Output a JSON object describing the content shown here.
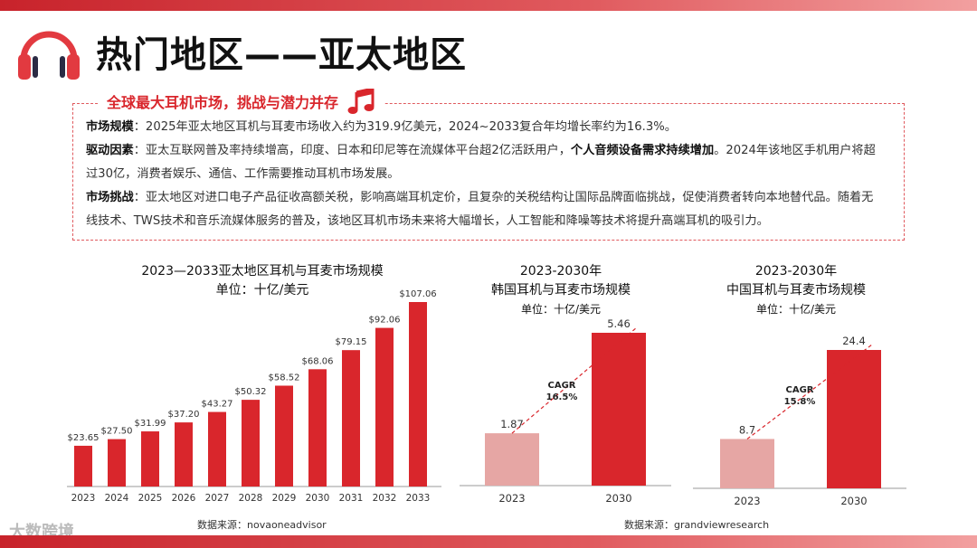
{
  "header": {
    "title": "热门地区——亚太地区"
  },
  "info": {
    "heading": "全球最大耳机市场，挑战与潜力并存",
    "line1_label": "市场规模",
    "line1_text": "：2025年亚太地区耳机与耳麦市场收入约为319.9亿美元，2024~2033复合年均增长率约为16.3%。",
    "line2_label": "驱动因素",
    "line2_text_a": "：亚太互联网普及率持续增高，印度、日本和印尼等在流媒体平台超2亿活跃用户，",
    "line2_strong": "个人音频设备需求持续增加",
    "line2_text_b": "。2024年该地区手机用户将超",
    "line3_text": "过30亿，消费者娱乐、通信、工作需要推动耳机市场发展。",
    "line4_label": "市场挑战",
    "line4_text": "：亚太地区对进口电子产品征收高额关税，影响高端耳机定价，且复杂的关税结构让国际品牌面临挑战，促使消费者转向本地替代品。随着无",
    "line5_text": "线技术、TWS技术和音乐流媒体服务的普及，该地区耳机市场未来将大幅增长，人工智能和降噪等技术将提升高端耳机的吸引力。"
  },
  "chart_data": [
    {
      "type": "bar",
      "title": "2023—2033亚太地区耳机与耳麦市场规模",
      "subtitle": "单位：十亿/美元",
      "categories": [
        "2023",
        "2024",
        "2025",
        "2026",
        "2027",
        "2028",
        "2029",
        "2030",
        "2031",
        "2032",
        "2033"
      ],
      "values": [
        23.65,
        27.5,
        31.99,
        37.2,
        43.27,
        50.32,
        58.52,
        68.06,
        79.15,
        92.06,
        107.06
      ],
      "value_labels": [
        "$23.65",
        "$27.50",
        "$31.99",
        "$37.20",
        "$43.27",
        "$50.32",
        "$58.52",
        "$68.06",
        "$79.15",
        "$92.06",
        "$107.06"
      ],
      "ylim": [
        0,
        107.06
      ],
      "color": "#d9262c"
    },
    {
      "type": "bar",
      "title": "2023-2030年",
      "subtitle": "韩国耳机与耳麦市场规模",
      "unit": "单位：十亿/美元",
      "categories": [
        "2023",
        "2030"
      ],
      "values": [
        1.87,
        5.46
      ],
      "value_labels": [
        "1.87",
        "5.46"
      ],
      "ylim": [
        0,
        5.46
      ],
      "annotation": [
        "CAGR",
        "16.5%"
      ],
      "colors": [
        "#e6a6a4",
        "#d9262c"
      ]
    },
    {
      "type": "bar",
      "title": "2023-2030年",
      "subtitle": "中国耳机与耳麦市场规模",
      "unit": "单位：十亿/美元",
      "categories": [
        "2023",
        "2030"
      ],
      "values": [
        8.7,
        24.4
      ],
      "value_labels": [
        "8.7",
        "24.4"
      ],
      "ylim": [
        0,
        24.4
      ],
      "annotation": [
        "CAGR",
        "15.8%"
      ],
      "colors": [
        "#e6a6a4",
        "#d9262c"
      ]
    }
  ],
  "sources": {
    "left": "数据来源：novaoneadvisor",
    "right": "数据来源：grandviewresearch"
  },
  "watermark": "大数跨境"
}
